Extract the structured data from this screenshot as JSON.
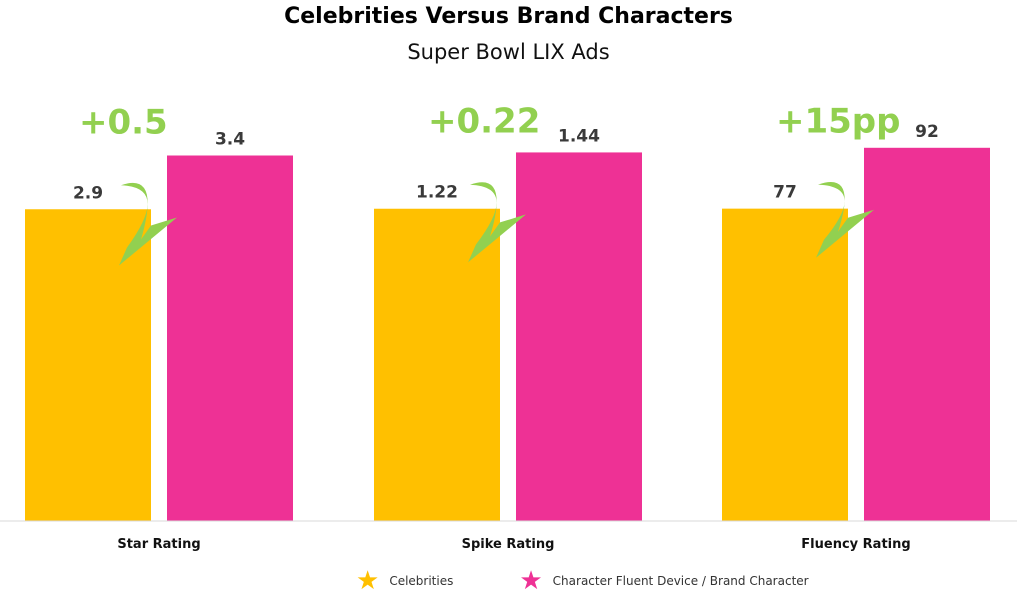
{
  "chart_data": {
    "type": "bar",
    "title": "Celebrities Versus Brand Characters",
    "subtitle": "Super Bowl LIX Ads",
    "categories": [
      "Star Rating",
      "Spike Rating",
      "Fluency Rating"
    ],
    "series": [
      {
        "name": "Celebrities",
        "color": "#FFC000",
        "values": [
          2.9,
          1.22,
          77
        ],
        "labels": [
          "2.9",
          "1.22",
          "77"
        ]
      },
      {
        "name": "Character Fluent Device / Brand Character",
        "color": "#EE3195",
        "values": [
          3.4,
          1.44,
          92
        ],
        "labels": [
          "3.4",
          "1.44",
          "92"
        ]
      }
    ],
    "annotations": [
      "+0.5",
      "+0.22",
      "+15pp"
    ],
    "annotation_color": "#92D050",
    "legend_position": "bottom",
    "independent_scales": true,
    "group_max": [
      4.0,
      1.68,
      106
    ]
  }
}
